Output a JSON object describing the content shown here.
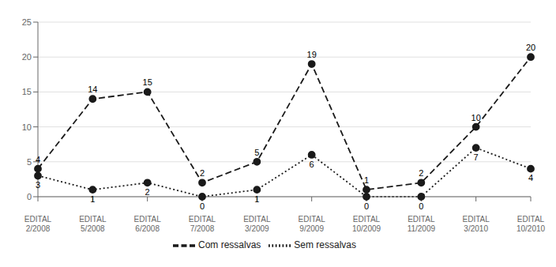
{
  "chart_data": {
    "type": "line",
    "categories": [
      "EDITAL\n2/2008",
      "EDITAL\n5/2008",
      "EDITAL\n6/2008",
      "EDITAL\n7/2008",
      "EDITAL\n3/2009",
      "EDITAL\n9/2009",
      "EDITAL\n10/2009",
      "EDITAL\n11/2009",
      "EDITAL\n3/2010",
      "EDITAL\n10/2010"
    ],
    "series": [
      {
        "name": "Com ressalvas",
        "color": "#1a1a1a",
        "values": [
          4,
          14,
          15,
          2,
          5,
          19,
          1,
          2,
          10,
          20
        ],
        "line_style": "dashed",
        "marker": "circle"
      },
      {
        "name": "Sem ressalvas",
        "color": "#1a1a1a",
        "values": [
          3,
          1,
          2,
          0,
          1,
          6,
          0,
          0,
          7,
          4
        ],
        "line_style": "dotted",
        "marker": "circle"
      }
    ],
    "ylim": [
      0,
      25
    ],
    "yticks": [
      0,
      5,
      10,
      15,
      20,
      25
    ],
    "grid": true,
    "data_labels": true,
    "legend": "bottom"
  }
}
